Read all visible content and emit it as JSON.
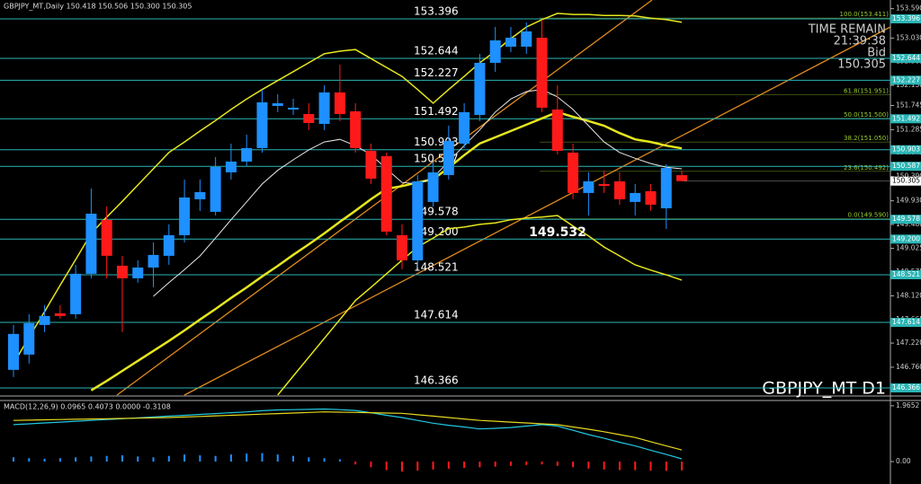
{
  "chart_data": {
    "type": "candlestick",
    "title": "GBPJPY_MT,Daily  150.418 150.506 150.300 150.305",
    "symbol_label": "GBPJPY_MT D1",
    "timer": {
      "title": "TIME REMAIN",
      "time": "21:39:38",
      "bid_label": "Bid",
      "bid": 150.305
    },
    "ylim": [
      146.229,
      153.755
    ],
    "yticks": [
      {
        "value": 153.59,
        "label": "153.590"
      },
      {
        "value": 153.03,
        "label": "153.030"
      },
      152.585,
      {
        "value": 152.13,
        "label": "152.130"
      },
      151.745,
      151.285,
      150.845,
      {
        "value": 150.39,
        "label": "150.390"
      },
      {
        "value": 149.93,
        "label": "149.930"
      },
      {
        "value": 149.48,
        "label": "149.480"
      },
      149.025,
      148.575,
      {
        "value": 148.12,
        "label": "148.120"
      },
      147.665,
      {
        "value": 147.22,
        "label": "147.220"
      },
      {
        "value": 146.76,
        "label": "146.760"
      }
    ],
    "up_color": "#1e90ff",
    "down_color": "#ff1a1a",
    "open": [
      146.71,
      147.001,
      147.565,
      147.787,
      147.77,
      148.54,
      149.566,
      148.694,
      148.454,
      148.659,
      148.882,
      149.275,
      149.959,
      149.72,
      150.472,
      150.677,
      150.934,
      151.737,
      151.669,
      151.583,
      151.395,
      151.994,
      151.635,
      150.882,
      150.78,
      149.275,
      148.796,
      149.908,
      150.421,
      151.019,
      151.566,
      152.558,
      152.866,
      152.866,
      153.037,
      151.669,
      150.848,
      150.079,
      150.25,
      150.301,
      149.908,
      150.113,
      149.788,
      150.418
    ],
    "high": [
      147.565,
      147.77,
      147.941,
      147.941,
      148.711,
      150.164,
      149.822,
      148.882,
      148.796,
      149.138,
      149.48,
      150.335,
      150.335,
      150.763,
      151.019,
      151.19,
      152.045,
      151.96,
      151.874,
      151.789,
      152.131,
      152.524,
      151.789,
      151.019,
      150.848,
      149.48,
      150.421,
      150.677,
      151.361,
      151.789,
      152.729,
      153.242,
      153.242,
      153.327,
      153.379,
      152.131,
      151.019,
      150.472,
      150.506,
      150.472,
      150.25,
      150.25,
      150.626,
      150.506
    ],
    "low": [
      146.573,
      146.83,
      147.428,
      147.685,
      147.685,
      148.454,
      148.454,
      147.428,
      148.369,
      148.283,
      148.711,
      149.138,
      149.737,
      149.651,
      150.335,
      150.592,
      150.848,
      151.618,
      151.566,
      151.276,
      151.276,
      151.447,
      150.848,
      150.25,
      149.275,
      148.625,
      148.659,
      149.822,
      150.335,
      150.934,
      151.447,
      152.387,
      152.763,
      152.729,
      151.618,
      150.814,
      149.959,
      149.651,
      150.079,
      149.856,
      149.651,
      149.737,
      149.395,
      150.3
    ],
    "close": [
      147.394,
      147.599,
      147.736,
      147.736,
      148.54,
      149.685,
      148.882,
      148.454,
      148.659,
      148.899,
      149.275,
      149.993,
      150.096,
      150.575,
      150.677,
      150.934,
      151.806,
      151.789,
      151.703,
      151.412,
      151.994,
      151.583,
      150.934,
      150.352,
      149.343,
      148.796,
      150.301,
      150.472,
      151.07,
      151.618,
      152.558,
      152.986,
      153.037,
      153.157,
      151.703,
      150.882,
      150.079,
      150.301,
      150.215,
      149.959,
      150.079,
      149.856,
      150.557,
      150.305
    ],
    "indicators": [
      {
        "color": "#e6e61e",
        "width": 1.5,
        "values": [
          146.83,
          147.33,
          147.82,
          148.32,
          148.81,
          149.31,
          149.62,
          149.92,
          150.23,
          150.54,
          150.85,
          151.05,
          151.26,
          151.46,
          151.67,
          151.87,
          152.05,
          152.22,
          152.39,
          152.56,
          152.73,
          152.78,
          152.81,
          152.64,
          152.47,
          152.3,
          152.05,
          151.79,
          152.05,
          152.3,
          152.56,
          152.78,
          153.02,
          153.24,
          153.38,
          153.5,
          153.48,
          153.48,
          153.46,
          153.46,
          153.45,
          153.41,
          153.38,
          153.33
        ]
      },
      {
        "color": "#e6e61e",
        "width": 2.5,
        "values": [
          null,
          null,
          null,
          null,
          null,
          146.32,
          146.5,
          146.69,
          146.88,
          147.07,
          147.26,
          147.46,
          147.67,
          147.87,
          148.08,
          148.28,
          148.49,
          148.69,
          148.9,
          149.1,
          149.31,
          149.53,
          149.74,
          149.96,
          150.16,
          150.21,
          150.28,
          150.34,
          150.56,
          150.8,
          151.02,
          151.14,
          151.26,
          151.38,
          151.5,
          151.62,
          151.53,
          151.45,
          151.36,
          151.22,
          151.1,
          151.05,
          150.98,
          150.93
        ]
      },
      {
        "color": "#e6e61e",
        "width": 1.5,
        "values": [
          null,
          null,
          null,
          null,
          null,
          null,
          null,
          null,
          null,
          null,
          null,
          null,
          null,
          null,
          null,
          null,
          null,
          146.23,
          146.59,
          146.95,
          147.31,
          147.67,
          148.03,
          148.28,
          148.54,
          148.8,
          149.05,
          149.22,
          149.4,
          149.43,
          149.48,
          149.51,
          149.57,
          149.6,
          149.62,
          149.65,
          149.45,
          149.26,
          149.05,
          148.88,
          148.71,
          148.61,
          148.52,
          148.42
        ]
      },
      {
        "color": "#e8e8e8",
        "width": 1,
        "values": [
          null,
          null,
          null,
          null,
          null,
          null,
          null,
          null,
          null,
          148.11,
          148.37,
          148.62,
          148.88,
          149.22,
          149.57,
          149.91,
          150.25,
          150.51,
          150.71,
          150.9,
          151.05,
          151.1,
          150.98,
          150.81,
          150.54,
          150.28,
          150.25,
          150.37,
          150.68,
          150.98,
          151.28,
          151.62,
          151.87,
          152.01,
          152.05,
          151.91,
          151.67,
          151.36,
          151.05,
          150.85,
          150.74,
          150.64,
          150.57,
          150.54
        ]
      }
    ],
    "levels": [
      153.396,
      152.644,
      152.227,
      151.492,
      150.903,
      150.587,
      149.578,
      {
        "value": 149.2,
        "label": "149.200"
      },
      148.521,
      147.614,
      146.366
    ],
    "level_color": "#2bb5b5",
    "fibonacci": [
      {
        "label": "100.0(153.411)",
        "value": 153.411
      },
      {
        "label": "61.8(151.951)",
        "value": 151.951
      },
      {
        "label": "50.0(151.500)",
        "value": 151.5
      },
      {
        "label": "38.2(151.050)",
        "value": 151.05
      },
      {
        "label": "23.6(150.492)",
        "value": 150.492
      },
      {
        "label": "0.0(149.590)",
        "value": 149.59
      }
    ],
    "fib_color": "#9acd32",
    "annotation": {
      "label": "149.532",
      "value": 149.532
    },
    "macd": {
      "title": "MACD(12,26,9) 0.0965 0.4073 0.0000 -0.3108",
      "ylim": [
        -0.79,
        2.12
      ],
      "yticks": [
        1.9652,
        {
          "value": 0,
          "label": "0.00"
        }
      ],
      "histogram": [
        0.15,
        0.12,
        0.1,
        0.12,
        0.15,
        0.18,
        0.2,
        0.22,
        0.18,
        0.15,
        0.2,
        0.25,
        0.22,
        0.2,
        0.25,
        0.28,
        0.3,
        0.25,
        0.2,
        0.15,
        0.12,
        0.08,
        -0.1,
        -0.2,
        -0.3,
        -0.35,
        -0.32,
        -0.28,
        -0.25,
        -0.22,
        -0.2,
        -0.18,
        -0.15,
        -0.12,
        -0.1,
        -0.15,
        -0.2,
        -0.25,
        -0.28,
        -0.3,
        -0.3,
        -0.32,
        -0.33,
        -0.3108
      ],
      "macd": [
        1.3,
        1.33,
        1.36,
        1.39,
        1.42,
        1.45,
        1.48,
        1.51,
        1.54,
        1.57,
        1.6,
        1.63,
        1.66,
        1.69,
        1.72,
        1.75,
        1.79,
        1.82,
        1.83,
        1.84,
        1.85,
        1.83,
        1.8,
        1.72,
        1.63,
        1.55,
        1.45,
        1.35,
        1.28,
        1.22,
        1.15,
        1.17,
        1.2,
        1.25,
        1.3,
        1.25,
        1.1,
        0.95,
        0.82,
        0.68,
        0.55,
        0.4,
        0.25,
        0.0965
      ],
      "signal": [
        1.45,
        1.46,
        1.47,
        1.48,
        1.49,
        1.5,
        1.51,
        1.52,
        1.53,
        1.54,
        1.55,
        1.57,
        1.59,
        1.61,
        1.63,
        1.65,
        1.67,
        1.69,
        1.71,
        1.73,
        1.75,
        1.74,
        1.73,
        1.72,
        1.71,
        1.7,
        1.65,
        1.6,
        1.55,
        1.5,
        1.45,
        1.42,
        1.39,
        1.36,
        1.33,
        1.3,
        1.22,
        1.14,
        1.05,
        0.95,
        0.85,
        0.7,
        0.55,
        0.4073
      ],
      "macd_color": "#20c8e0",
      "signal_color": "#e6d81e",
      "pos_color": "#1e90ff",
      "neg_color": "#ff1a1a"
    }
  }
}
